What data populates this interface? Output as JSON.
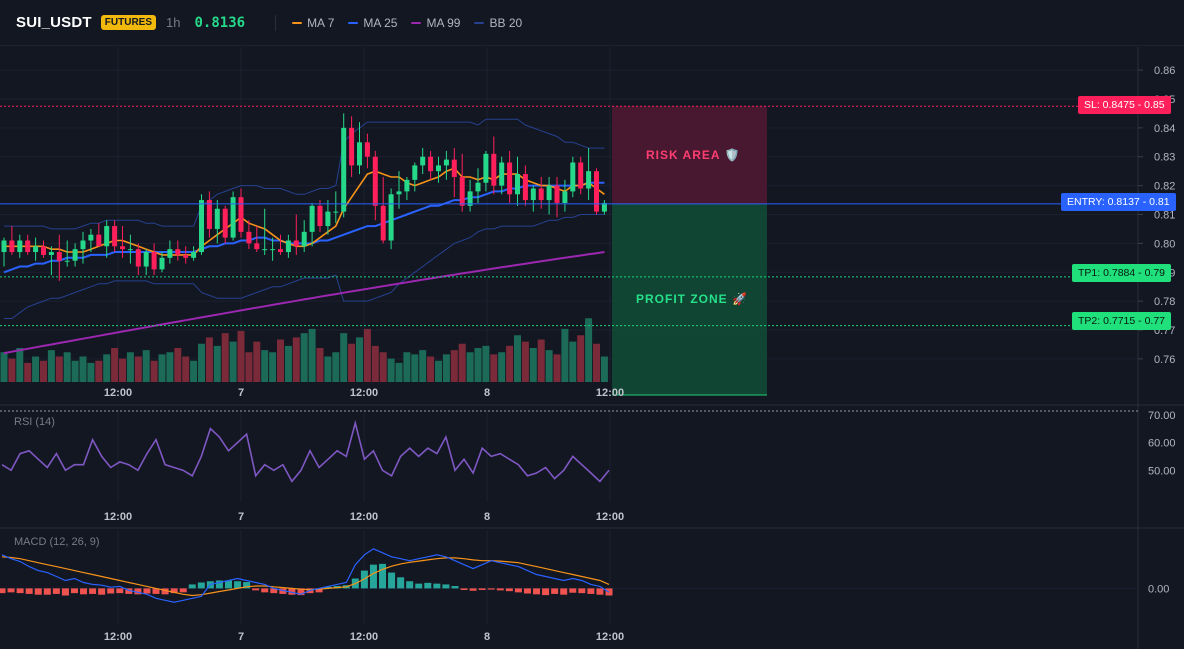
{
  "header": {
    "symbol": "SUI_USDT",
    "badge": "FUTURES",
    "timeframe": "1h",
    "last_price": "0.8136",
    "legend": [
      {
        "label": "MA 7",
        "color": "#f7931a"
      },
      {
        "label": "MA 25",
        "color": "#2962ff"
      },
      {
        "label": "MA 99",
        "color": "#9c27b0"
      },
      {
        "label": "BB 20",
        "color": "#26418f"
      }
    ]
  },
  "colors": {
    "background": "#131722",
    "up": "#26d98a",
    "down": "#ff1f5a",
    "entry": "#2962ff",
    "stop_loss": "#ff1f5a",
    "take_profit": "#1fd07a",
    "rsi": "#7e57c2",
    "macd": "#2962ff",
    "signal": "#f7931a",
    "hist_pos": "#26a69a",
    "hist_neg": "#ef5350"
  },
  "price_axis": {
    "ticks": [
      "0.86",
      "0.85",
      "0.84",
      "0.83",
      "0.82",
      "0.81",
      "0.80",
      "0.79",
      "0.78",
      "0.77",
      "0.76"
    ]
  },
  "time_axis": {
    "ticks": [
      "12:00",
      "7",
      "12:00",
      "8",
      "12:00"
    ]
  },
  "levels": {
    "stop_loss": {
      "label": "SL: 0.8475",
      "value": 0.8475,
      "axis": "0.85"
    },
    "entry": {
      "label": "ENTRY: 0.8137",
      "value": 0.8137,
      "axis": "0.81"
    },
    "tp1": {
      "label": "TP1: 0.7884",
      "value": 0.7884,
      "axis": "0.79"
    },
    "tp2": {
      "label": "TP2: 0.7715",
      "value": 0.7715,
      "axis": "0.77"
    }
  },
  "zones": {
    "risk": "RISK AREA 🛡️",
    "profit": "PROFIT ZONE 🚀"
  },
  "rsi": {
    "label": "RSI (14)",
    "ticks": [
      "70.00",
      "60.00",
      "50.00"
    ]
  },
  "macd": {
    "label": "MACD (12, 26, 9)",
    "ticks": [
      "0.00"
    ]
  },
  "chart_data": {
    "type": "candlestick",
    "x_ticks": [
      "12:00",
      "7",
      "12:00",
      "8",
      "12:00"
    ],
    "ylim": [
      0.752,
      0.868
    ],
    "candles": [
      {
        "o": 0.797,
        "h": 0.802,
        "l": 0.792,
        "c": 0.801
      },
      {
        "o": 0.801,
        "h": 0.806,
        "l": 0.796,
        "c": 0.797
      },
      {
        "o": 0.797,
        "h": 0.803,
        "l": 0.795,
        "c": 0.801
      },
      {
        "o": 0.801,
        "h": 0.803,
        "l": 0.796,
        "c": 0.797
      },
      {
        "o": 0.797,
        "h": 0.802,
        "l": 0.794,
        "c": 0.799
      },
      {
        "o": 0.799,
        "h": 0.801,
        "l": 0.795,
        "c": 0.796
      },
      {
        "o": 0.796,
        "h": 0.799,
        "l": 0.789,
        "c": 0.797
      },
      {
        "o": 0.797,
        "h": 0.803,
        "l": 0.787,
        "c": 0.794
      },
      {
        "o": 0.794,
        "h": 0.801,
        "l": 0.792,
        "c": 0.794
      },
      {
        "o": 0.794,
        "h": 0.8,
        "l": 0.792,
        "c": 0.798
      },
      {
        "o": 0.798,
        "h": 0.804,
        "l": 0.793,
        "c": 0.801
      },
      {
        "o": 0.801,
        "h": 0.805,
        "l": 0.797,
        "c": 0.803
      },
      {
        "o": 0.803,
        "h": 0.807,
        "l": 0.799,
        "c": 0.799
      },
      {
        "o": 0.799,
        "h": 0.808,
        "l": 0.795,
        "c": 0.806
      },
      {
        "o": 0.806,
        "h": 0.808,
        "l": 0.797,
        "c": 0.799
      },
      {
        "o": 0.799,
        "h": 0.806,
        "l": 0.795,
        "c": 0.798
      },
      {
        "o": 0.798,
        "h": 0.803,
        "l": 0.793,
        "c": 0.798
      },
      {
        "o": 0.798,
        "h": 0.8,
        "l": 0.789,
        "c": 0.792
      },
      {
        "o": 0.792,
        "h": 0.798,
        "l": 0.789,
        "c": 0.797
      },
      {
        "o": 0.797,
        "h": 0.8,
        "l": 0.789,
        "c": 0.791
      },
      {
        "o": 0.791,
        "h": 0.797,
        "l": 0.79,
        "c": 0.795
      },
      {
        "o": 0.795,
        "h": 0.801,
        "l": 0.793,
        "c": 0.798
      },
      {
        "o": 0.798,
        "h": 0.801,
        "l": 0.794,
        "c": 0.796
      },
      {
        "o": 0.796,
        "h": 0.799,
        "l": 0.793,
        "c": 0.795
      },
      {
        "o": 0.795,
        "h": 0.799,
        "l": 0.794,
        "c": 0.797
      },
      {
        "o": 0.797,
        "h": 0.817,
        "l": 0.796,
        "c": 0.815
      },
      {
        "o": 0.815,
        "h": 0.818,
        "l": 0.802,
        "c": 0.805
      },
      {
        "o": 0.805,
        "h": 0.815,
        "l": 0.8,
        "c": 0.812
      },
      {
        "o": 0.812,
        "h": 0.813,
        "l": 0.8,
        "c": 0.802
      },
      {
        "o": 0.802,
        "h": 0.818,
        "l": 0.801,
        "c": 0.816
      },
      {
        "o": 0.816,
        "h": 0.819,
        "l": 0.802,
        "c": 0.804
      },
      {
        "o": 0.804,
        "h": 0.808,
        "l": 0.798,
        "c": 0.8
      },
      {
        "o": 0.8,
        "h": 0.806,
        "l": 0.797,
        "c": 0.798
      },
      {
        "o": 0.798,
        "h": 0.812,
        "l": 0.796,
        "c": 0.798
      },
      {
        "o": 0.798,
        "h": 0.802,
        "l": 0.794,
        "c": 0.798
      },
      {
        "o": 0.798,
        "h": 0.803,
        "l": 0.796,
        "c": 0.797
      },
      {
        "o": 0.797,
        "h": 0.803,
        "l": 0.795,
        "c": 0.801
      },
      {
        "o": 0.801,
        "h": 0.81,
        "l": 0.796,
        "c": 0.799
      },
      {
        "o": 0.799,
        "h": 0.808,
        "l": 0.797,
        "c": 0.804
      },
      {
        "o": 0.804,
        "h": 0.814,
        "l": 0.799,
        "c": 0.813
      },
      {
        "o": 0.813,
        "h": 0.815,
        "l": 0.804,
        "c": 0.806
      },
      {
        "o": 0.806,
        "h": 0.815,
        "l": 0.803,
        "c": 0.811
      },
      {
        "o": 0.811,
        "h": 0.818,
        "l": 0.807,
        "c": 0.811
      },
      {
        "o": 0.811,
        "h": 0.845,
        "l": 0.809,
        "c": 0.84
      },
      {
        "o": 0.84,
        "h": 0.844,
        "l": 0.823,
        "c": 0.827
      },
      {
        "o": 0.827,
        "h": 0.842,
        "l": 0.824,
        "c": 0.835
      },
      {
        "o": 0.835,
        "h": 0.838,
        "l": 0.826,
        "c": 0.83
      },
      {
        "o": 0.83,
        "h": 0.832,
        "l": 0.808,
        "c": 0.813
      },
      {
        "o": 0.813,
        "h": 0.823,
        "l": 0.8,
        "c": 0.801
      },
      {
        "o": 0.801,
        "h": 0.819,
        "l": 0.798,
        "c": 0.817
      },
      {
        "o": 0.817,
        "h": 0.825,
        "l": 0.812,
        "c": 0.818
      },
      {
        "o": 0.818,
        "h": 0.823,
        "l": 0.815,
        "c": 0.822
      },
      {
        "o": 0.822,
        "h": 0.828,
        "l": 0.818,
        "c": 0.827
      },
      {
        "o": 0.827,
        "h": 0.833,
        "l": 0.824,
        "c": 0.83
      },
      {
        "o": 0.83,
        "h": 0.832,
        "l": 0.822,
        "c": 0.825
      },
      {
        "o": 0.825,
        "h": 0.83,
        "l": 0.821,
        "c": 0.827
      },
      {
        "o": 0.827,
        "h": 0.832,
        "l": 0.822,
        "c": 0.829
      },
      {
        "o": 0.829,
        "h": 0.833,
        "l": 0.816,
        "c": 0.823
      },
      {
        "o": 0.823,
        "h": 0.831,
        "l": 0.811,
        "c": 0.813
      },
      {
        "o": 0.813,
        "h": 0.822,
        "l": 0.811,
        "c": 0.818
      },
      {
        "o": 0.818,
        "h": 0.826,
        "l": 0.814,
        "c": 0.821
      },
      {
        "o": 0.821,
        "h": 0.832,
        "l": 0.818,
        "c": 0.831
      },
      {
        "o": 0.831,
        "h": 0.837,
        "l": 0.817,
        "c": 0.82
      },
      {
        "o": 0.82,
        "h": 0.83,
        "l": 0.817,
        "c": 0.828
      },
      {
        "o": 0.828,
        "h": 0.832,
        "l": 0.814,
        "c": 0.817
      },
      {
        "o": 0.817,
        "h": 0.83,
        "l": 0.813,
        "c": 0.824
      },
      {
        "o": 0.824,
        "h": 0.827,
        "l": 0.813,
        "c": 0.815
      },
      {
        "o": 0.815,
        "h": 0.82,
        "l": 0.811,
        "c": 0.819
      },
      {
        "o": 0.819,
        "h": 0.823,
        "l": 0.812,
        "c": 0.815
      },
      {
        "o": 0.815,
        "h": 0.823,
        "l": 0.81,
        "c": 0.82
      },
      {
        "o": 0.82,
        "h": 0.823,
        "l": 0.809,
        "c": 0.814
      },
      {
        "o": 0.814,
        "h": 0.822,
        "l": 0.811,
        "c": 0.818
      },
      {
        "o": 0.818,
        "h": 0.83,
        "l": 0.816,
        "c": 0.828
      },
      {
        "o": 0.828,
        "h": 0.83,
        "l": 0.817,
        "c": 0.819
      },
      {
        "o": 0.819,
        "h": 0.833,
        "l": 0.815,
        "c": 0.825
      },
      {
        "o": 0.825,
        "h": 0.826,
        "l": 0.81,
        "c": 0.811
      },
      {
        "o": 0.811,
        "h": 0.815,
        "l": 0.81,
        "c": 0.814
      }
    ],
    "volume": [
      14,
      11,
      16,
      9,
      12,
      10,
      15,
      12,
      14,
      10,
      12,
      9,
      10,
      13,
      16,
      11,
      14,
      12,
      15,
      10,
      13,
      14,
      16,
      12,
      10,
      18,
      21,
      17,
      23,
      19,
      24,
      14,
      19,
      15,
      14,
      20,
      17,
      21,
      23,
      25,
      16,
      12,
      14,
      23,
      18,
      21,
      25,
      17,
      14,
      11,
      9,
      14,
      13,
      15,
      12,
      10,
      13,
      15,
      18,
      14,
      16,
      17,
      13,
      14,
      17,
      22,
      19,
      16,
      20,
      15,
      13,
      25,
      19,
      22,
      30,
      18,
      12
    ],
    "ma7": [
      0.799,
      0.799,
      0.799,
      0.799,
      0.799,
      0.799,
      0.798,
      0.798,
      0.797,
      0.797,
      0.797,
      0.798,
      0.799,
      0.8,
      0.801,
      0.801,
      0.8,
      0.799,
      0.798,
      0.797,
      0.796,
      0.796,
      0.796,
      0.796,
      0.796,
      0.799,
      0.801,
      0.803,
      0.805,
      0.807,
      0.809,
      0.807,
      0.806,
      0.805,
      0.803,
      0.801,
      0.8,
      0.799,
      0.799,
      0.8,
      0.802,
      0.804,
      0.806,
      0.812,
      0.816,
      0.82,
      0.824,
      0.825,
      0.824,
      0.823,
      0.823,
      0.821,
      0.82,
      0.821,
      0.822,
      0.823,
      0.825,
      0.826,
      0.823,
      0.823,
      0.822,
      0.823,
      0.822,
      0.824,
      0.824,
      0.824,
      0.822,
      0.821,
      0.82,
      0.82,
      0.819,
      0.818,
      0.82,
      0.82,
      0.821,
      0.819,
      0.817
    ],
    "ma25": [
      0.79,
      0.791,
      0.792,
      0.792,
      0.793,
      0.793,
      0.794,
      0.794,
      0.795,
      0.795,
      0.795,
      0.796,
      0.796,
      0.796,
      0.797,
      0.797,
      0.797,
      0.797,
      0.797,
      0.797,
      0.797,
      0.797,
      0.797,
      0.797,
      0.797,
      0.798,
      0.799,
      0.799,
      0.8,
      0.8,
      0.801,
      0.801,
      0.802,
      0.802,
      0.801,
      0.801,
      0.8,
      0.8,
      0.8,
      0.8,
      0.801,
      0.801,
      0.802,
      0.803,
      0.804,
      0.805,
      0.806,
      0.806,
      0.807,
      0.808,
      0.809,
      0.81,
      0.811,
      0.812,
      0.813,
      0.813,
      0.814,
      0.815,
      0.815,
      0.816,
      0.816,
      0.817,
      0.818,
      0.818,
      0.819,
      0.819,
      0.82,
      0.82,
      0.82,
      0.82,
      0.82,
      0.82,
      0.82,
      0.82,
      0.821,
      0.821,
      0.821
    ],
    "ma99_start": 0.762,
    "ma99_end": 0.797,
    "bb_upper": [
      0.806,
      0.806,
      0.806,
      0.806,
      0.806,
      0.806,
      0.805,
      0.805,
      0.805,
      0.805,
      0.806,
      0.807,
      0.807,
      0.808,
      0.808,
      0.808,
      0.808,
      0.808,
      0.807,
      0.807,
      0.806,
      0.806,
      0.806,
      0.806,
      0.806,
      0.813,
      0.815,
      0.817,
      0.818,
      0.819,
      0.82,
      0.82,
      0.82,
      0.819,
      0.819,
      0.819,
      0.818,
      0.817,
      0.817,
      0.818,
      0.819,
      0.819,
      0.82,
      0.835,
      0.838,
      0.84,
      0.842,
      0.842,
      0.842,
      0.842,
      0.842,
      0.842,
      0.842,
      0.842,
      0.842,
      0.842,
      0.842,
      0.842,
      0.842,
      0.842,
      0.841,
      0.843,
      0.843,
      0.843,
      0.843,
      0.843,
      0.841,
      0.84,
      0.839,
      0.838,
      0.837,
      0.835,
      0.835,
      0.834,
      0.833,
      0.833,
      0.833
    ],
    "bb_lower": [
      0.774,
      0.774,
      0.776,
      0.778,
      0.779,
      0.78,
      0.781,
      0.781,
      0.782,
      0.783,
      0.784,
      0.785,
      0.786,
      0.786,
      0.787,
      0.787,
      0.787,
      0.787,
      0.787,
      0.786,
      0.786,
      0.786,
      0.786,
      0.786,
      0.786,
      0.783,
      0.782,
      0.781,
      0.781,
      0.781,
      0.781,
      0.782,
      0.783,
      0.784,
      0.785,
      0.785,
      0.786,
      0.787,
      0.788,
      0.788,
      0.788,
      0.788,
      0.789,
      0.78,
      0.78,
      0.78,
      0.78,
      0.781,
      0.782,
      0.783,
      0.786,
      0.788,
      0.79,
      0.792,
      0.794,
      0.796,
      0.798,
      0.8,
      0.801,
      0.802,
      0.804,
      0.805,
      0.805,
      0.806,
      0.806,
      0.806,
      0.806,
      0.806,
      0.807,
      0.808,
      0.808,
      0.809,
      0.809,
      0.81,
      0.81,
      0.81,
      0.81
    ],
    "rsi": [
      52,
      50,
      56,
      57,
      54,
      51,
      56,
      50,
      52,
      52,
      61,
      55,
      51,
      53,
      52,
      50,
      56,
      61,
      52,
      51,
      50,
      48,
      55,
      65,
      62,
      57,
      60,
      63,
      48,
      52,
      50,
      52,
      46,
      50,
      57,
      51,
      54,
      57,
      55,
      67,
      54,
      57,
      50,
      48,
      55,
      58,
      55,
      58,
      56,
      62,
      50,
      54,
      49,
      58,
      55,
      56,
      54,
      52,
      48,
      49,
      51,
      47,
      50,
      55,
      52,
      49,
      46,
      50
    ],
    "macd_line": [
      0.0085,
      0.0075,
      0.0068,
      0.0055,
      0.0045,
      0.004,
      0.003,
      0.002,
      0.0025,
      0.0015,
      0.001,
      0.0008,
      0.0003,
      0.0005,
      -0.0005,
      -0.001,
      -0.0015,
      -0.0025,
      -0.003,
      -0.0035,
      -0.003,
      -0.0025,
      -0.002,
      0.001,
      0.0015,
      0.002,
      0.0025,
      0.002,
      0.0015,
      0.001,
      0.0,
      -0.0005,
      -0.001,
      -0.0015,
      -0.0005,
      0.0,
      0.0005,
      0.001,
      0.0015,
      0.006,
      0.0085,
      0.01,
      0.009,
      0.008,
      0.0075,
      0.007,
      0.0075,
      0.008,
      0.0085,
      0.008,
      0.007,
      0.006,
      0.005,
      0.006,
      0.007,
      0.0065,
      0.006,
      0.0055,
      0.0045,
      0.0035,
      0.003,
      0.0025,
      0.002,
      0.0025,
      0.002,
      0.001,
      0.0005,
      -0.001
    ],
    "signal_line": [
      0.008,
      0.0078,
      0.0075,
      0.007,
      0.0065,
      0.006,
      0.0055,
      0.005,
      0.0045,
      0.004,
      0.0035,
      0.003,
      0.0025,
      0.002,
      0.0015,
      0.001,
      0.0005,
      0.0,
      -0.0005,
      -0.001,
      -0.0015,
      -0.0018,
      -0.0016,
      -0.0012,
      -0.0008,
      -0.0004,
      0.0,
      0.0004,
      0.0006,
      0.0006,
      0.0004,
      0.0002,
      0.0,
      -0.0002,
      -0.0003,
      -0.0002,
      0.0,
      0.0002,
      0.0004,
      0.0012,
      0.0024,
      0.0038,
      0.0048,
      0.0056,
      0.0062,
      0.0066,
      0.0069,
      0.0072,
      0.0075,
      0.0077,
      0.0077,
      0.0075,
      0.0072,
      0.007,
      0.007,
      0.0069,
      0.0067,
      0.0065,
      0.006,
      0.0055,
      0.005,
      0.0045,
      0.004,
      0.0035,
      0.003,
      0.0025,
      0.002,
      0.001
    ],
    "histogram": [
      -0.0012,
      -0.001,
      -0.0012,
      -0.0014,
      -0.0016,
      -0.0016,
      -0.0014,
      -0.0018,
      -0.0012,
      -0.0015,
      -0.0014,
      -0.0016,
      -0.0013,
      -0.0012,
      -0.0014,
      -0.0015,
      -0.0013,
      -0.0014,
      -0.0015,
      -0.0012,
      -0.001,
      0.001,
      0.0015,
      0.0018,
      0.002,
      0.002,
      0.0018,
      0.0016,
      -0.0005,
      -0.001,
      -0.0012,
      -0.0014,
      -0.0016,
      -0.0017,
      -0.0012,
      -0.001,
      0.0004,
      0.0006,
      0.0008,
      0.0025,
      0.0045,
      0.006,
      0.0062,
      0.004,
      0.0028,
      0.0018,
      0.0012,
      0.0014,
      0.0012,
      0.001,
      0.0006,
      -0.0004,
      -0.0006,
      -0.0004,
      -0.0003,
      -0.0005,
      -0.0007,
      -0.001,
      -0.0013,
      -0.0015,
      -0.0017,
      -0.0014,
      -0.0016,
      -0.0011,
      -0.0012,
      -0.0014,
      -0.0016,
      -0.0018
    ],
    "rsi_ylim": [
      40,
      71
    ],
    "macd_ylim": [
      -0.0085,
      0.0135
    ]
  }
}
